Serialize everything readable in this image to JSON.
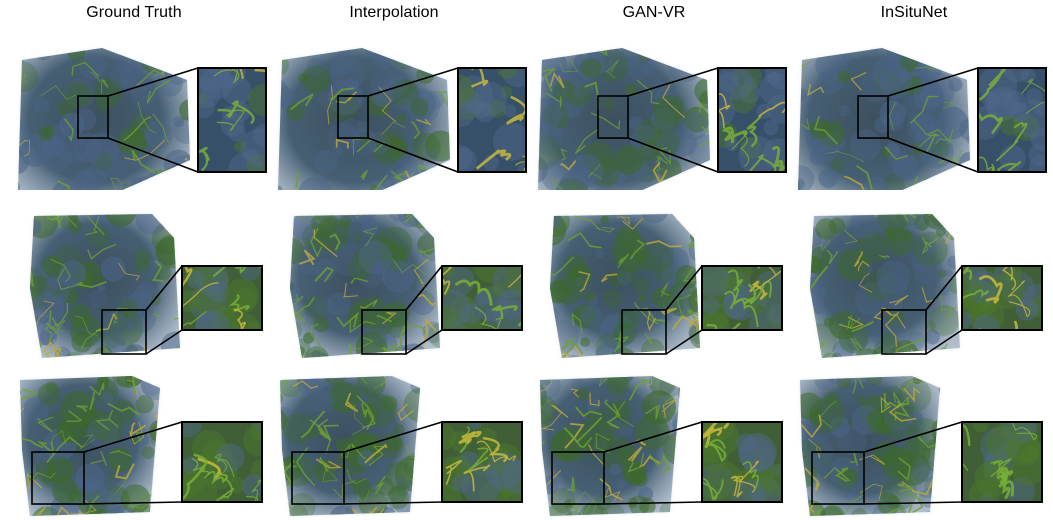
{
  "figure": {
    "columns": [
      {
        "label": "Ground Truth"
      },
      {
        "label": "Interpolation"
      },
      {
        "label": "GAN-VR"
      },
      {
        "label": "InSituNet"
      }
    ],
    "rows": 3
  }
}
